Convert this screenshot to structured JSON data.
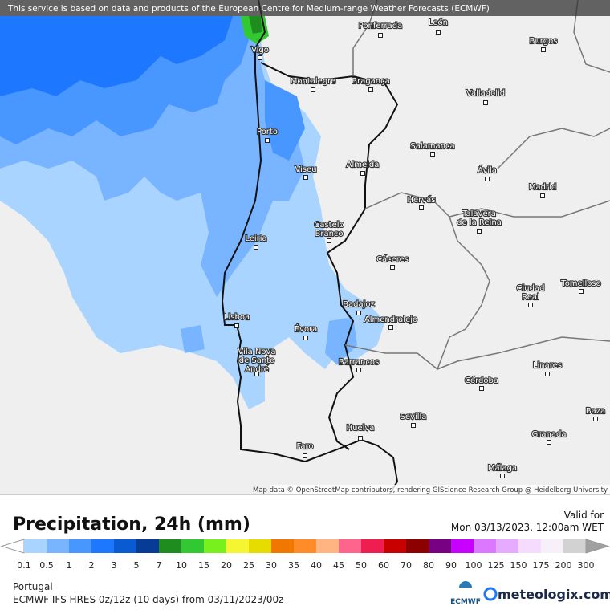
{
  "banner": "This service is based on data and products of the European Centre for Medium-range Weather Forecasts (ECMWF)",
  "cities": [
    {
      "lines": [
        "Ponferrada"
      ]
    },
    {
      "lines": [
        "León"
      ]
    },
    {
      "lines": [
        "Burgos"
      ]
    },
    {
      "lines": [
        "Vigo"
      ]
    },
    {
      "lines": [
        "Montalegre"
      ]
    },
    {
      "lines": [
        "Bragança"
      ]
    },
    {
      "lines": [
        "Valladolid"
      ]
    },
    {
      "lines": [
        "Porto"
      ]
    },
    {
      "lines": [
        "Salamanca"
      ]
    },
    {
      "lines": [
        "Viseu"
      ]
    },
    {
      "lines": [
        "Almeida"
      ]
    },
    {
      "lines": [
        "Ávila"
      ]
    },
    {
      "lines": [
        "Madrid"
      ]
    },
    {
      "lines": [
        "Hervás"
      ]
    },
    {
      "lines": [
        "Talavera",
        "de la Reina"
      ]
    },
    {
      "lines": [
        "Castelo",
        "Branco"
      ]
    },
    {
      "lines": [
        "Leiria"
      ]
    },
    {
      "lines": [
        "Cáceres"
      ]
    },
    {
      "lines": [
        "Ciudad",
        "Real"
      ]
    },
    {
      "lines": [
        "Tomelloso"
      ]
    },
    {
      "lines": [
        "Badajoz"
      ]
    },
    {
      "lines": [
        "Lisboa"
      ]
    },
    {
      "lines": [
        "Almendralejo"
      ]
    },
    {
      "lines": [
        "Évora"
      ]
    },
    {
      "lines": [
        "Vila Nova",
        "de Santo",
        "André"
      ]
    },
    {
      "lines": [
        "Barrancos"
      ]
    },
    {
      "lines": [
        "Linares"
      ]
    },
    {
      "lines": [
        "Córdoba"
      ]
    },
    {
      "lines": [
        "Sevilla"
      ]
    },
    {
      "lines": [
        "Baza"
      ]
    },
    {
      "lines": [
        "Huelva"
      ]
    },
    {
      "lines": [
        "Granada"
      ]
    },
    {
      "lines": [
        "Faro"
      ]
    },
    {
      "lines": [
        "Málaga"
      ]
    }
  ],
  "attribution": "Map data © OpenStreetMap contributors, rendering GIScience Research Group @ Heidelberg University",
  "title": "Precipitation, 24h (mm)",
  "valid_label": "Valid for",
  "valid_time": "Mon 03/13/2023, 12:00am WET",
  "scale": {
    "labels": [
      "0.1",
      "0.5",
      "1",
      "2",
      "3",
      "5",
      "7",
      "10",
      "15",
      "20",
      "25",
      "30",
      "35",
      "40",
      "45",
      "50",
      "60",
      "70",
      "80",
      "90",
      "100",
      "125",
      "150",
      "175",
      "200",
      "300"
    ],
    "colors": [
      "#a8d4ff",
      "#78b4ff",
      "#4896ff",
      "#1e78ff",
      "#0a5ad2",
      "#063c96",
      "#1e8c1e",
      "#32c832",
      "#78f01e",
      "#f5f532",
      "#e6dc00",
      "#f07800",
      "#ff8c28",
      "#ffb482",
      "#ff648c",
      "#f01e50",
      "#c80000",
      "#8c0000",
      "#780082",
      "#c800ff",
      "#dc78ff",
      "#e6aaff",
      "#f5dcff",
      "#f8f0f8",
      "#d2d2d2"
    ],
    "under_color": "#ffffff",
    "over_color": "#a0a0a0"
  },
  "region": "Portugal",
  "model": "ECMWF IFS HRES 0z/12z (10 days) from  03/11/2023/00z",
  "ecmwf_logo": "ECMWF",
  "brand": "meteologix.com"
}
